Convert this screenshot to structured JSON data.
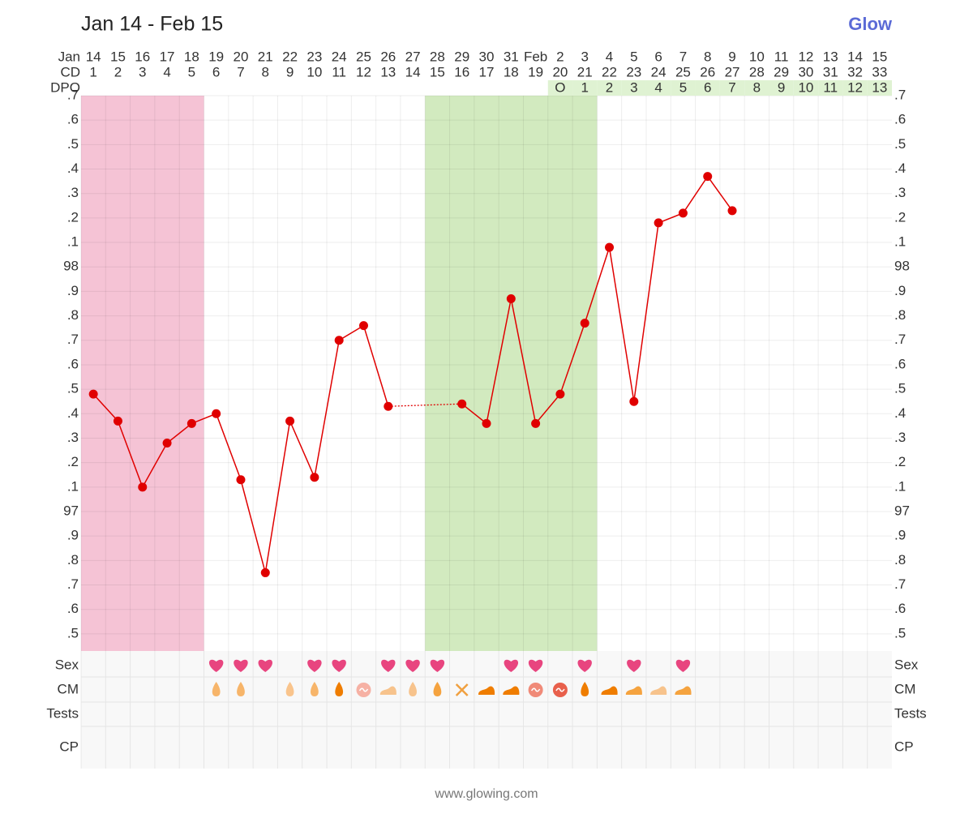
{
  "chart_data": {
    "type": "line",
    "title": "Jan 14 - Feb 15",
    "logo": "Glow",
    "footer": "www.glowing.com",
    "row_labels": {
      "month": "Jan",
      "cd": "CD",
      "dpo": "DPO",
      "sex": "Sex",
      "cm": "CM",
      "tests": "Tests",
      "cp": "CP"
    },
    "dates": [
      "14",
      "15",
      "16",
      "17",
      "18",
      "19",
      "20",
      "21",
      "22",
      "23",
      "24",
      "25",
      "26",
      "27",
      "28",
      "29",
      "30",
      "31",
      "Feb",
      "2",
      "3",
      "4",
      "5",
      "6",
      "7",
      "8",
      "9",
      "10",
      "11",
      "12",
      "13",
      "14",
      "15"
    ],
    "weekend_days": [
      0,
      6,
      7,
      13,
      14,
      20,
      21,
      27,
      28
    ],
    "weekend_color": "#d0021b",
    "cd": [
      1,
      2,
      3,
      4,
      5,
      6,
      7,
      8,
      9,
      10,
      11,
      12,
      13,
      14,
      15,
      16,
      17,
      18,
      19,
      20,
      21,
      22,
      23,
      24,
      25,
      26,
      27,
      28,
      29,
      30,
      31,
      32,
      33
    ],
    "dpo": [
      null,
      null,
      null,
      null,
      null,
      null,
      null,
      null,
      null,
      null,
      null,
      null,
      null,
      null,
      null,
      null,
      null,
      null,
      null,
      "O",
      1,
      2,
      3,
      4,
      5,
      6,
      7,
      8,
      9,
      10,
      11,
      12,
      13
    ],
    "values": [
      97.48,
      97.37,
      97.1,
      97.28,
      97.36,
      97.4,
      97.13,
      96.75,
      97.37,
      97.14,
      97.7,
      97.76,
      97.43,
      null,
      null,
      97.44,
      97.36,
      97.87,
      97.36,
      97.48,
      97.77,
      98.08,
      97.45,
      98.18,
      98.22,
      98.37,
      98.23,
      null,
      null,
      null,
      null,
      null,
      null
    ],
    "color": "#e00000",
    "ylim": [
      96.43,
      98.7
    ],
    "yticks": [
      {
        "value": 96.5,
        "label": ".5"
      },
      {
        "value": 96.6,
        "label": ".6"
      },
      {
        "value": 96.7,
        "label": ".7"
      },
      {
        "value": 96.8,
        "label": ".8"
      },
      {
        "value": 96.9,
        "label": ".9"
      },
      97,
      {
        "value": 97.1,
        "label": ".1"
      },
      {
        "value": 97.2,
        "label": ".2"
      },
      {
        "value": 97.3,
        "label": ".3"
      },
      {
        "value": 97.4,
        "label": ".4"
      },
      {
        "value": 97.5,
        "label": ".5"
      },
      {
        "value": 97.6,
        "label": ".6"
      },
      {
        "value": 97.7,
        "label": ".7"
      },
      {
        "value": 97.8,
        "label": ".8"
      },
      {
        "value": 97.9,
        "label": ".9"
      },
      98,
      {
        "value": 98.1,
        "label": ".1"
      },
      {
        "value": 98.2,
        "label": ".2"
      },
      {
        "value": 98.3,
        "label": ".3"
      },
      {
        "value": 98.4,
        "label": ".4"
      },
      {
        "value": 98.5,
        "label": ".5"
      },
      {
        "value": 98.6,
        "label": ".6"
      },
      {
        "value": 98.7,
        "label": ".7"
      }
    ],
    "grid": true,
    "period": [
      1,
      5
    ],
    "period_color": "#f5c3d5",
    "fertile_window": [
      15,
      21
    ],
    "fertile_color": "#cde8b8",
    "sex": [
      6,
      7,
      8,
      10,
      11,
      13,
      14,
      15,
      18,
      19,
      21,
      23,
      25
    ],
    "sex_color": "#e8457f",
    "cm": [
      {
        "day": 6,
        "shape": "drop",
        "color": "#f7b56a"
      },
      {
        "day": 7,
        "shape": "drop",
        "color": "#f7b56a"
      },
      {
        "day": 9,
        "shape": "drop",
        "color": "#f9c48c"
      },
      {
        "day": 10,
        "shape": "drop",
        "color": "#f7b56a"
      },
      {
        "day": 11,
        "shape": "drop",
        "color": "#ef7d00"
      },
      {
        "day": 12,
        "shape": "egg",
        "color": "#f6b1a4"
      },
      {
        "day": 13,
        "shape": "blob",
        "color": "#f7c38c"
      },
      {
        "day": 14,
        "shape": "drop",
        "color": "#f7c38c"
      },
      {
        "day": 15,
        "shape": "drop",
        "color": "#f5a33f"
      },
      {
        "day": 16,
        "shape": "cross",
        "color": "#f0a040"
      },
      {
        "day": 17,
        "shape": "blob",
        "color": "#ef7d00"
      },
      {
        "day": 18,
        "shape": "blob",
        "color": "#ef7d00"
      },
      {
        "day": 19,
        "shape": "egg",
        "color": "#f08a78"
      },
      {
        "day": 20,
        "shape": "egg",
        "color": "#e8604c"
      },
      {
        "day": 21,
        "shape": "drop",
        "color": "#ef7d00"
      },
      {
        "day": 22,
        "shape": "blob",
        "color": "#ef7d00"
      },
      {
        "day": 23,
        "shape": "blob",
        "color": "#f5a33f"
      },
      {
        "day": 24,
        "shape": "blob",
        "color": "#f7c38c"
      },
      {
        "day": 25,
        "shape": "blob",
        "color": "#f5a33f"
      }
    ]
  }
}
